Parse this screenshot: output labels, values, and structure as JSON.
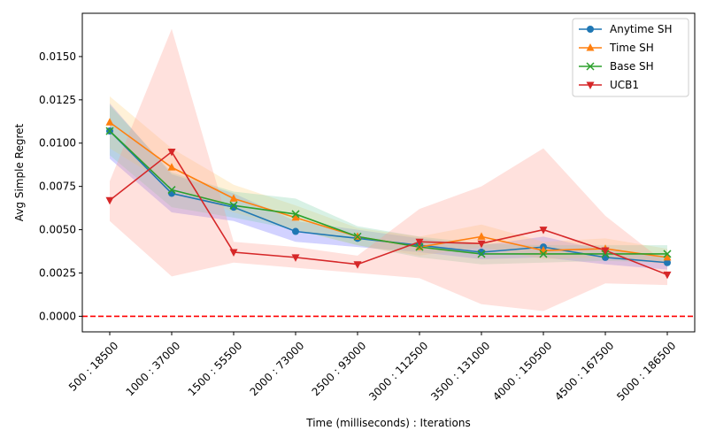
{
  "chart_data": {
    "type": "line",
    "title": "",
    "xlabel": "Time (milliseconds) : Iterations",
    "ylabel": "Avg Simple Regret",
    "categories": [
      "500 : 18500",
      "1000 : 37000",
      "1500 : 55500",
      "2000 : 73000",
      "2500 : 93000",
      "3000 : 112500",
      "3500 : 131000",
      "4000 : 150500",
      "4500 : 167500",
      "5000 : 186500"
    ],
    "ylim": [
      -0.0009,
      0.0175
    ],
    "yticks": [
      "0.0000",
      "0.0025",
      "0.0050",
      "0.0075",
      "0.0100",
      "0.0125",
      "0.0150"
    ],
    "ytick_values": [
      0,
      0.0025,
      0.005,
      0.0075,
      0.01,
      0.0125,
      0.015
    ],
    "reference_line": {
      "y": 0.0,
      "color": "#ff0000",
      "style": "dashed"
    },
    "legend_position": "top-right",
    "grid": false,
    "series": [
      {
        "name": "Anytime SH",
        "color": "#1f77b4",
        "band_color": "#6b6bff",
        "marker": "circle",
        "values": [
          0.0107,
          0.0071,
          0.0063,
          0.0049,
          0.0045,
          0.0041,
          0.0037,
          0.004,
          0.0034,
          0.0031
        ],
        "lower": [
          0.0091,
          0.006,
          0.0055,
          0.0043,
          0.004,
          0.0037,
          0.0033,
          0.0034,
          0.003,
          0.0027
        ],
        "upper": [
          0.0123,
          0.0082,
          0.0071,
          0.0055,
          0.005,
          0.0045,
          0.0041,
          0.0046,
          0.0038,
          0.0035
        ]
      },
      {
        "name": "Time SH",
        "color": "#ff7f0e",
        "band_color": "#ffd27f",
        "marker": "triangle-up",
        "values": [
          0.0112,
          0.0086,
          0.0068,
          0.0057,
          0.0046,
          0.004,
          0.0046,
          0.0038,
          0.0039,
          0.0034
        ],
        "lower": [
          0.0097,
          0.0075,
          0.006,
          0.005,
          0.0041,
          0.0035,
          0.004,
          0.0033,
          0.0034,
          0.003
        ],
        "upper": [
          0.0127,
          0.0097,
          0.0076,
          0.0064,
          0.0051,
          0.0046,
          0.0053,
          0.0043,
          0.0045,
          0.0039
        ]
      },
      {
        "name": "Base SH",
        "color": "#2ca02c",
        "band_color": "#7fd0a8",
        "marker": "x",
        "values": [
          0.0107,
          0.0073,
          0.0064,
          0.0059,
          0.0046,
          0.004,
          0.0036,
          0.0036,
          0.0036,
          0.0036
        ],
        "lower": [
          0.0093,
          0.0063,
          0.0057,
          0.005,
          0.0041,
          0.0034,
          0.003,
          0.0031,
          0.0032,
          0.0031
        ],
        "upper": [
          0.0122,
          0.0083,
          0.0072,
          0.0068,
          0.0052,
          0.0046,
          0.0042,
          0.0041,
          0.0041,
          0.0041
        ]
      },
      {
        "name": "UCB1",
        "color": "#d62728",
        "band_color": "#ff9c8f",
        "marker": "triangle-down",
        "values": [
          0.0067,
          0.0095,
          0.0037,
          0.0034,
          0.003,
          0.0043,
          0.0042,
          0.005,
          0.0038,
          0.0024
        ],
        "lower": [
          0.0055,
          0.0023,
          0.0031,
          0.0028,
          0.0025,
          0.0022,
          0.0007,
          0.0003,
          0.0019,
          0.0018
        ],
        "upper": [
          0.0078,
          0.0166,
          0.0043,
          0.004,
          0.0035,
          0.0062,
          0.0075,
          0.0097,
          0.0058,
          0.003
        ]
      }
    ]
  }
}
